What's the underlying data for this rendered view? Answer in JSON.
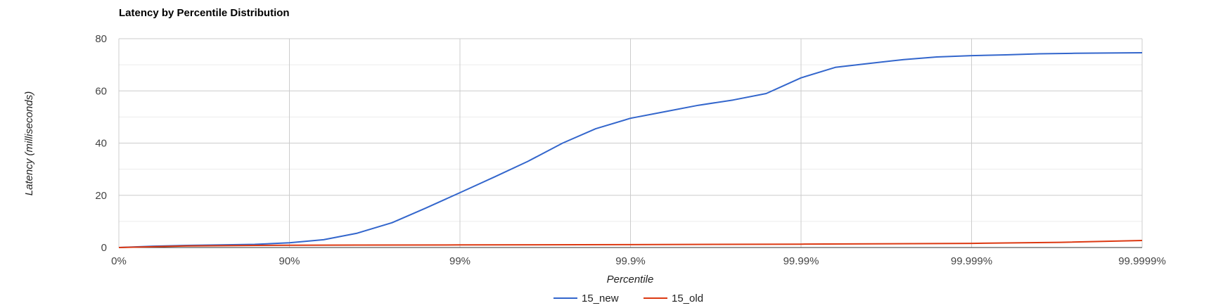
{
  "chart_data": {
    "type": "line",
    "title": "Latency by Percentile Distribution",
    "xlabel": "Percentile",
    "ylabel": "Latency (milliseconds)",
    "x_scale": "log (1/(1-p))",
    "x_tick_labels": [
      "0%",
      "90%",
      "99%",
      "99.9%",
      "99.99%",
      "99.999%",
      "99.9999%"
    ],
    "ylim": [
      0,
      80
    ],
    "y_ticks": [
      0,
      20,
      40,
      60,
      80
    ],
    "grid": true,
    "legend_position": "bottom",
    "series": [
      {
        "name": "15_new",
        "color": "#3366cc",
        "points": [
          [
            "0%",
            0.0
          ],
          [
            "37%",
            0.5
          ],
          [
            "60%",
            0.8
          ],
          [
            "75%",
            1.0
          ],
          [
            "84%",
            1.2
          ],
          [
            "90%",
            1.8
          ],
          [
            "93.7%",
            3.0
          ],
          [
            "96.0%",
            5.5
          ],
          [
            "97.5%",
            9.5
          ],
          [
            "98.4%",
            15.0
          ],
          [
            "99%",
            21.0
          ],
          [
            "99.37%",
            27.0
          ],
          [
            "99.60%",
            33.0
          ],
          [
            "99.75%",
            40.0
          ],
          [
            "99.84%",
            45.5
          ],
          [
            "99.9%",
            49.5
          ],
          [
            "99.937%",
            52.0
          ],
          [
            "99.960%",
            54.5
          ],
          [
            "99.975%",
            56.5
          ],
          [
            "99.984%",
            59.0
          ],
          [
            "99.99%",
            65.0
          ],
          [
            "99.9937%",
            69.0
          ],
          [
            "99.9960%",
            70.5
          ],
          [
            "99.9975%",
            72.0
          ],
          [
            "99.9984%",
            73.0
          ],
          [
            "99.999%",
            73.5
          ],
          [
            "99.99937%",
            73.8
          ],
          [
            "99.99960%",
            74.2
          ],
          [
            "99.99975%",
            74.4
          ],
          [
            "99.99984%",
            74.5
          ],
          [
            "99.9999%",
            74.6
          ]
        ]
      },
      {
        "name": "15_old",
        "color": "#dc3912",
        "points": [
          [
            "0%",
            0.0
          ],
          [
            "60%",
            0.6
          ],
          [
            "90%",
            0.9
          ],
          [
            "99%",
            1.0
          ],
          [
            "99.9%",
            1.1
          ],
          [
            "99.99%",
            1.3
          ],
          [
            "99.999%",
            1.6
          ],
          [
            "99.9997%",
            2.0
          ],
          [
            "99.9999%",
            2.7
          ]
        ]
      }
    ]
  }
}
